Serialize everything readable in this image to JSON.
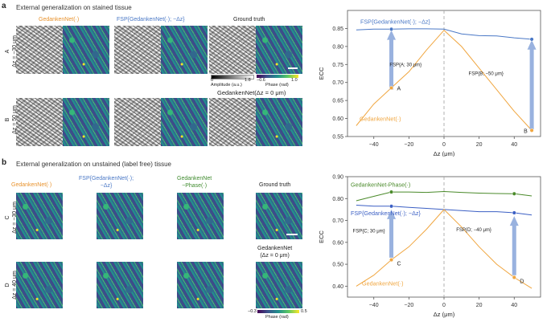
{
  "panel_a": {
    "label": "a",
    "section_title": "External generalization on stained tissue",
    "col_headers": [
      "GedankenNet(·)",
      "FSP{GedankenNet(·); −Δz}",
      "Ground truth"
    ],
    "rows": [
      {
        "letter": "A",
        "dz": "Δz = −30 μm"
      },
      {
        "letter": "B",
        "dz": "Δz = 50 μm"
      }
    ],
    "amp_bar": {
      "min": "0",
      "max": "1.8",
      "title": "Amplitude (a.u.)"
    },
    "phase_bar": {
      "min": "−0.6",
      "max": "1.0",
      "title": "Phase (rad)"
    },
    "ref_label": "GedankenNet(Δz = 0 μm)"
  },
  "panel_b": {
    "label": "b",
    "section_title": "External generalization on unstained (label free) tissue",
    "col_headers": [
      "GedankenNet(·)",
      "FSP{GedankenNet(·);\n−Δz}",
      "GedankenNet\n−Phase(·)",
      "Ground truth"
    ],
    "rows": [
      {
        "letter": "C",
        "dz": "Δz = −30 μm"
      },
      {
        "letter": "D",
        "dz": "Δz = 40 μm"
      }
    ],
    "ref_label": "GedankenNet\n(Δz = 0 μm)",
    "phase_bar": {
      "min": "−0.3",
      "max": "0.5",
      "title": "Phase (rad)"
    }
  },
  "colors": {
    "orange": "#f0a640",
    "blue": "#3b5fc4",
    "green": "#4a8a2a",
    "arrow": "#8eaadb"
  },
  "chart_data": [
    {
      "type": "line",
      "xlabel": "Δz (μm)",
      "ylabel": "ECC",
      "xlim": [
        -55,
        55
      ],
      "ylim": [
        0.55,
        0.9
      ],
      "xticks": [
        -40,
        -20,
        0,
        20,
        40
      ],
      "yticks": [
        0.55,
        0.6,
        0.65,
        0.7,
        0.75,
        0.8,
        0.85
      ],
      "series": [
        {
          "name": "FSP{GedankenNet(·); −Δz}",
          "color": "#4a78c6",
          "x": [
            -50,
            -40,
            -30,
            -20,
            -10,
            0,
            10,
            20,
            30,
            40,
            50
          ],
          "y": [
            0.846,
            0.848,
            0.848,
            0.849,
            0.849,
            0.848,
            0.835,
            0.83,
            0.829,
            0.824,
            0.82
          ]
        },
        {
          "name": "GedankenNet(·)",
          "color": "#f0a640",
          "x": [
            -50,
            -40,
            -30,
            -20,
            -10,
            0,
            10,
            20,
            30,
            40,
            50
          ],
          "y": [
            0.58,
            0.64,
            0.685,
            0.73,
            0.79,
            0.845,
            0.8,
            0.74,
            0.68,
            0.62,
            0.567
          ]
        }
      ],
      "points": [
        {
          "series": 0,
          "x": -30,
          "y": 0.848
        },
        {
          "series": 0,
          "x": 50,
          "y": 0.82
        },
        {
          "series": 1,
          "x": -30,
          "y": 0.685,
          "label": "A"
        },
        {
          "series": 1,
          "x": 50,
          "y": 0.567,
          "label": "B"
        }
      ],
      "legend_labels": [
        "FSP{GedankenNet(·); −Δz}",
        "GedankenNet(·)"
      ],
      "annotations": [
        "FSP{A; 30 μm}",
        "FSP{B; −50 μm}"
      ]
    },
    {
      "type": "line",
      "xlabel": "Δz (μm)",
      "ylabel": "ECC",
      "xlim": [
        -55,
        55
      ],
      "ylim": [
        0.35,
        0.9
      ],
      "xticks": [
        -40,
        -20,
        0,
        20,
        40
      ],
      "yticks": [
        0.4,
        0.5,
        0.6,
        0.7,
        0.8,
        0.9
      ],
      "series": [
        {
          "name": "GedankenNet-Phase(·)",
          "color": "#4a8a2a",
          "x": [
            -50,
            -40,
            -30,
            -20,
            -10,
            0,
            10,
            20,
            30,
            40,
            50
          ],
          "y": [
            0.79,
            0.81,
            0.83,
            0.83,
            0.828,
            0.832,
            0.828,
            0.825,
            0.823,
            0.822,
            0.812
          ]
        },
        {
          "name": "FSP{GedankenNet(·); −Δz}",
          "color": "#3b5fc4",
          "x": [
            -50,
            -40,
            -30,
            -20,
            -10,
            0,
            10,
            20,
            30,
            40,
            50
          ],
          "y": [
            0.77,
            0.765,
            0.765,
            0.76,
            0.755,
            0.75,
            0.745,
            0.74,
            0.74,
            0.735,
            0.725
          ]
        },
        {
          "name": "GedankenNet(·)",
          "color": "#f0a640",
          "x": [
            -50,
            -40,
            -30,
            -20,
            -10,
            0,
            10,
            20,
            30,
            40,
            50
          ],
          "y": [
            0.4,
            0.45,
            0.52,
            0.58,
            0.66,
            0.75,
            0.67,
            0.58,
            0.5,
            0.44,
            0.39
          ]
        }
      ],
      "points": [
        {
          "series": 0,
          "x": -30,
          "y": 0.83
        },
        {
          "series": 0,
          "x": 40,
          "y": 0.822
        },
        {
          "series": 1,
          "x": -30,
          "y": 0.765
        },
        {
          "series": 1,
          "x": 40,
          "y": 0.735
        },
        {
          "series": 2,
          "x": -30,
          "y": 0.52,
          "label": "C"
        },
        {
          "series": 2,
          "x": 40,
          "y": 0.44,
          "label": "D"
        }
      ],
      "legend_labels": [
        "GedankenNet-Phase(·)",
        "FSP{GedankenNet(·); −Δz}",
        "GedankenNet(·)"
      ],
      "annotations": [
        "FSP{C; 30 μm}",
        "FSP{D; −40 μm}"
      ]
    }
  ]
}
